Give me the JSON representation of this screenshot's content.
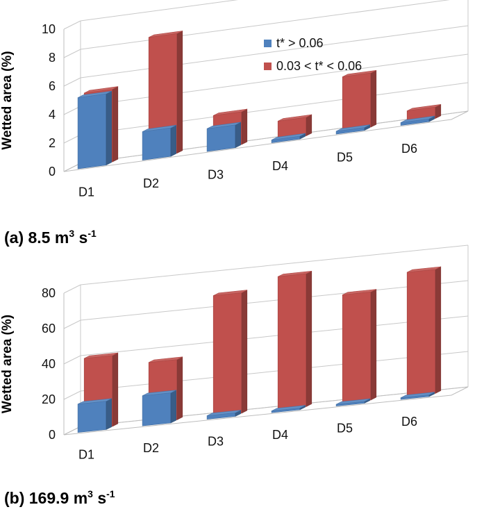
{
  "chart_data": [
    {
      "type": "bar",
      "caption": {
        "prefix": "(a) 8.5 m",
        "sup1": "3",
        "mid": " s",
        "sup2": "-1"
      },
      "ylabel": "Wetted area (%)",
      "ylim": [
        0,
        10
      ],
      "yticks": [
        "0",
        "2",
        "4",
        "6",
        "8",
        "10"
      ],
      "categories": [
        "D1",
        "D2",
        "D3",
        "D4",
        "D5",
        "D6"
      ],
      "series": [
        {
          "name": "t* > 0.06",
          "color": "#4f81bd",
          "values": [
            5.0,
            2.0,
            1.6,
            0.2,
            0.2,
            0.2
          ]
        },
        {
          "name": "0.03 < t* < 0.06",
          "color": "#c0504d",
          "values": [
            5.1,
            8.4,
            2.3,
            1.3,
            3.8,
            0.8
          ]
        }
      ],
      "legend": "top-right"
    },
    {
      "type": "bar",
      "caption": {
        "prefix": "(b) 169.9 m",
        "sup1": "3",
        "mid": " s",
        "sup2": "-1"
      },
      "ylabel": "Wetted area (%)",
      "ylim": [
        0,
        80
      ],
      "yticks": [
        "0",
        "20",
        "40",
        "60",
        "80"
      ],
      "categories": [
        "D1",
        "D2",
        "D3",
        "D4",
        "D5",
        "D6"
      ],
      "series": [
        {
          "name": "t* > 0.06",
          "color": "#4f81bd",
          "values": [
            16,
            17,
            2,
            0.5,
            0.5,
            0.5
          ]
        },
        {
          "name": "0.03 < t* < 0.06",
          "color": "#c0504d",
          "values": [
            40,
            34,
            68,
            75,
            61,
            70
          ]
        }
      ]
    }
  ]
}
